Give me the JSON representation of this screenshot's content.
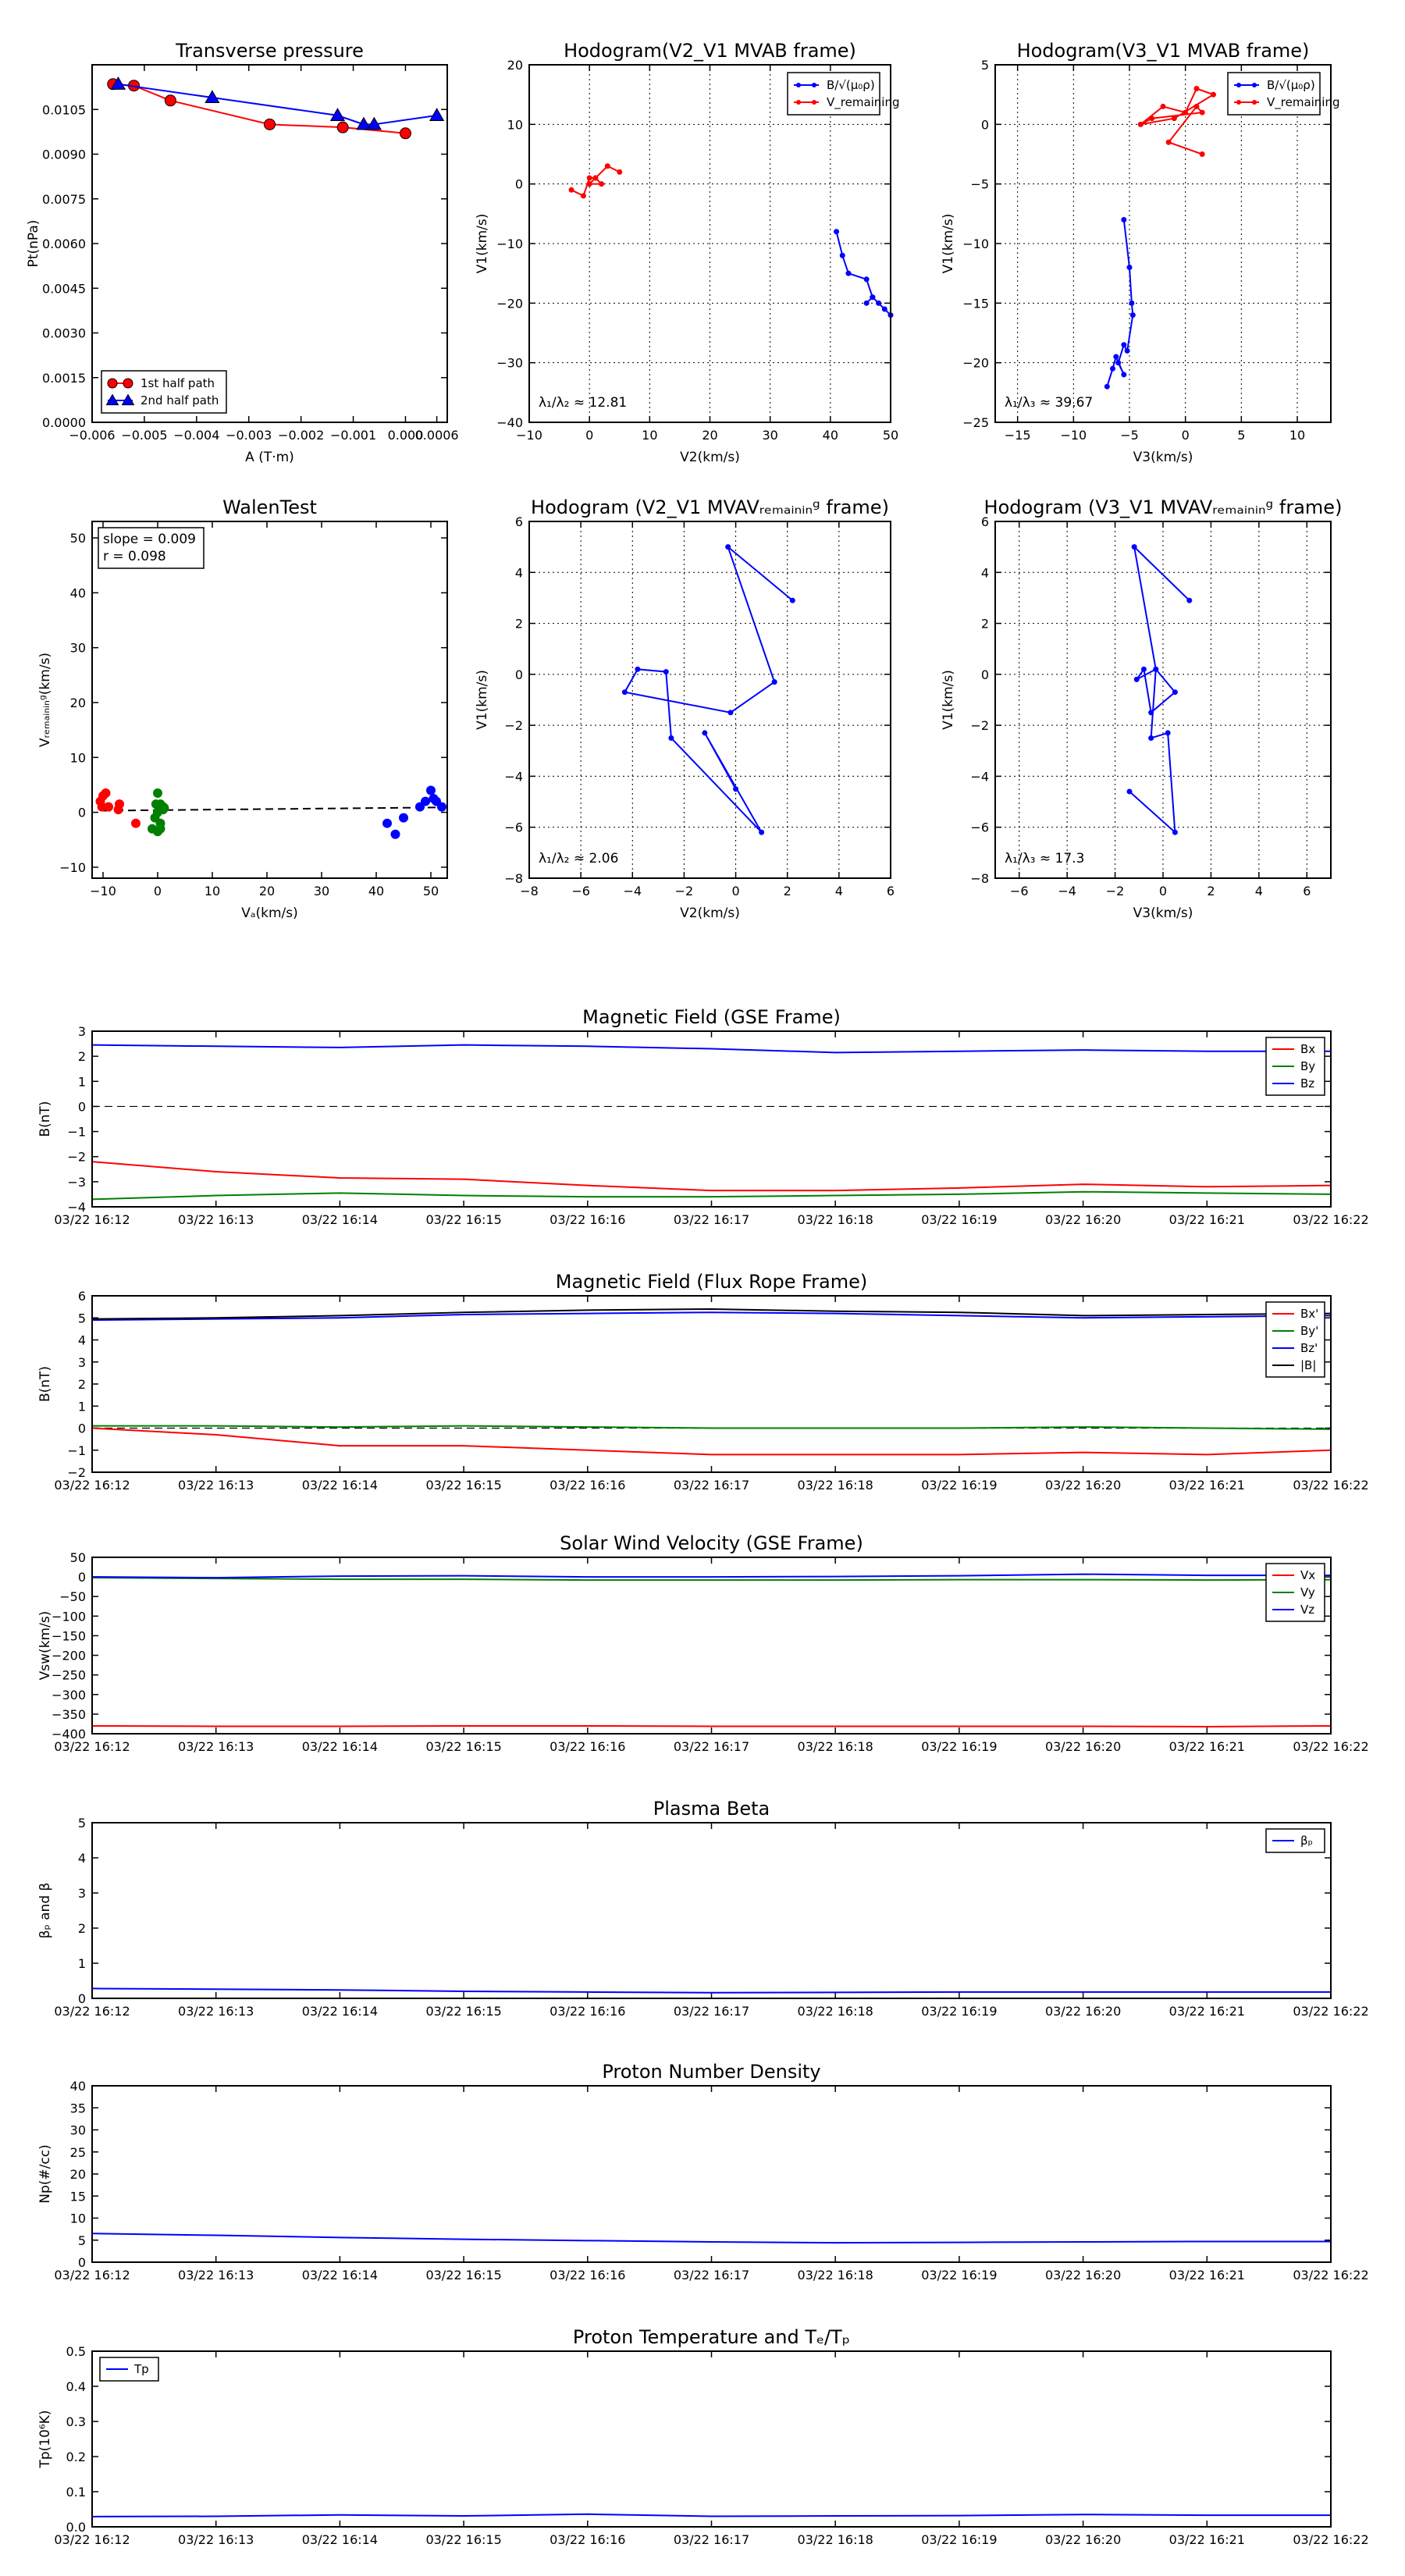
{
  "chart_data": [
    {
      "id": "tp",
      "type": "scatter",
      "title": "Transverse pressure",
      "xlabel": "A (T·m)",
      "ylabel": "Pt(nPa)",
      "xlim": [
        -0.006,
        0.0008
      ],
      "ylim": [
        0,
        0.012
      ],
      "xticks": [
        -0.006,
        -0.005,
        -0.004,
        -0.003,
        -0.002,
        -0.001,
        0.0
      ],
      "xtick_labels": [
        "−0.006",
        "−0.005",
        "−0.004",
        "−0.003",
        "−0.002",
        "−0.001",
        "0.000"
      ],
      "extra_xticks": [
        {
          "v": 0.0006,
          "label": "0.0006"
        }
      ],
      "yticks": [
        0,
        0.0015,
        0.003,
        0.0045,
        0.006,
        0.0075,
        0.009,
        0.0105
      ],
      "ytick_labels": [
        "0.0000",
        "0.0015",
        "0.0030",
        "0.0045",
        "0.0060",
        "0.0075",
        "0.0090",
        "0.0105"
      ],
      "grid": false,
      "legend": "lower-left",
      "series": [
        {
          "name": "1st half path",
          "color": "#ff0000",
          "marker": "circle",
          "x": [
            -0.0056,
            -0.0052,
            -0.0045,
            -0.0026,
            -0.0012,
            0.0
          ],
          "y": [
            0.01135,
            0.0113,
            0.0108,
            0.01,
            0.0099,
            0.0097
          ]
        },
        {
          "name": "2nd half path",
          "color": "#0000ff",
          "marker": "triangle",
          "x": [
            -0.0055,
            -0.0037,
            -0.0013,
            -0.0008,
            -0.0006,
            0.0006
          ],
          "y": [
            0.01135,
            0.0109,
            0.0103,
            0.01,
            0.01,
            0.0103
          ]
        }
      ]
    },
    {
      "id": "hodo1",
      "type": "line",
      "title": "Hodogram(V2_V1 MVAB frame)",
      "xlabel": "V2(km/s)",
      "ylabel": "V1(km/s)",
      "xlim": [
        -10,
        50
      ],
      "ylim": [
        -40,
        20
      ],
      "xticks": [
        -10,
        0,
        10,
        20,
        30,
        40,
        50
      ],
      "yticks": [
        -40,
        -30,
        -20,
        -10,
        0,
        10,
        20
      ],
      "grid": true,
      "legend": "top-right",
      "annotation": "λ₁/λ₂ ≈ 12.81",
      "series": [
        {
          "name": "B/√(μ₀ρ)",
          "color": "#0000ff",
          "x": [
            41,
            42,
            43,
            46,
            47,
            48,
            49,
            50,
            47,
            46
          ],
          "y": [
            -8,
            -12,
            -15,
            -16,
            -19,
            -20,
            -21,
            -22,
            -19,
            -20
          ]
        },
        {
          "name": "V_remaining",
          "color": "#ff0000",
          "x": [
            -3,
            -1,
            0,
            1,
            2,
            0,
            1,
            3,
            5
          ],
          "y": [
            -1,
            -2,
            1,
            1,
            0,
            0,
            1,
            3,
            2
          ]
        }
      ]
    },
    {
      "id": "hodo2",
      "type": "line",
      "title": "Hodogram(V3_V1 MVAB frame)",
      "xlabel": "V3(km/s)",
      "ylabel": "V1(km/s)",
      "xlim": [
        -17,
        13
      ],
      "ylim": [
        -25,
        5
      ],
      "xticks": [
        -15,
        -10,
        -5,
        0,
        5,
        10
      ],
      "yticks": [
        -25,
        -20,
        -15,
        -10,
        -5,
        0,
        5
      ],
      "grid": true,
      "legend": "top-right",
      "annotation": "λ₁/λ₃ ≈ 39.67",
      "series": [
        {
          "name": "B/√(μ₀ρ)",
          "color": "#0000ff",
          "x": [
            -5.5,
            -5,
            -4.8,
            -4.7,
            -5.2,
            -5.5,
            -6,
            -5.5,
            -6.2,
            -6.5,
            -7
          ],
          "y": [
            -8,
            -12,
            -15,
            -16,
            -19,
            -18.5,
            -20,
            -21,
            -19.5,
            -20.5,
            -22
          ]
        },
        {
          "name": "V_remaining",
          "color": "#ff0000",
          "x": [
            -4,
            -2,
            0,
            1,
            2.5,
            -1,
            -4,
            -3,
            1.5,
            1,
            -1.5,
            1.5
          ],
          "y": [
            0,
            1.5,
            1,
            3,
            2.5,
            0.5,
            0,
            0.5,
            1,
            1.5,
            -1.5,
            -2.5
          ]
        }
      ]
    },
    {
      "id": "walen",
      "type": "scatter",
      "title": "WalenTest",
      "xlabel": "Vₐ(km/s)",
      "ylabel": "Vᵣₑₘₐᵢₙᵢₙᵍ(km/s)",
      "xlim": [
        -12,
        53
      ],
      "ylim": [
        -12,
        53
      ],
      "xticks": [
        -10,
        0,
        10,
        20,
        30,
        40,
        50
      ],
      "yticks": [
        -10,
        0,
        10,
        20,
        30,
        40,
        50
      ],
      "grid": false,
      "annotation_lines": [
        "slope = 0.009",
        "r = 0.098"
      ],
      "fit_line": {
        "x": [
          -10,
          52
        ],
        "y": [
          0.3,
          0.9
        ]
      },
      "series": [
        {
          "name": "red",
          "color": "#ff0000",
          "x": [
            -10.5,
            -10,
            -9.5,
            -10.2,
            -9,
            -7,
            -7.2,
            -4
          ],
          "y": [
            2,
            3,
            3.5,
            1,
            1,
            1.5,
            0.5,
            -2
          ]
        },
        {
          "name": "green",
          "color": "#008000",
          "x": [
            0,
            0.5,
            1,
            0,
            -0.5,
            0.5,
            1,
            -1,
            0,
            0.5,
            -0.3,
            1.2
          ],
          "y": [
            3.5,
            1.5,
            1,
            0,
            -1,
            -2,
            0.5,
            -3,
            -3.5,
            -3,
            1.5,
            0.8
          ]
        },
        {
          "name": "blue",
          "color": "#0000ff",
          "x": [
            42,
            43.5,
            45,
            48,
            49,
            50,
            51,
            52,
            50.5
          ],
          "y": [
            -2,
            -4,
            -1,
            1,
            2,
            4,
            2,
            1,
            2.5
          ]
        }
      ]
    },
    {
      "id": "hodo3",
      "type": "line",
      "title": "Hodogram (V2_V1 MVAVᵣₑₘₐᵢₙᵢₙᵍ frame)",
      "xlabel": "V2(km/s)",
      "ylabel": "V1(km/s)",
      "xlim": [
        -8,
        6
      ],
      "ylim": [
        -8,
        6
      ],
      "xticks": [
        -8,
        -6,
        -4,
        -2,
        0,
        2,
        4,
        6
      ],
      "yticks": [
        -8,
        -6,
        -4,
        -2,
        0,
        2,
        4,
        6
      ],
      "grid": true,
      "annotation": "λ₁/λ₂ ≈ 2.06",
      "series": [
        {
          "name": "V",
          "color": "#0000ff",
          "x": [
            2.2,
            -0.3,
            1.5,
            -0.2,
            -4.3,
            -3.8,
            -2.7,
            -2.5,
            1,
            -1.2,
            0
          ],
          "y": [
            2.9,
            5,
            -0.3,
            -1.5,
            -0.7,
            0.2,
            0.1,
            -2.5,
            -6.2,
            -2.3,
            -4.5
          ]
        }
      ]
    },
    {
      "id": "hodo4",
      "type": "line",
      "title": "Hodogram (V3_V1 MVAVᵣₑₘₐᵢₙᵢₙᵍ frame)",
      "xlabel": "V3(km/s)",
      "ylabel": "V1(km/s)",
      "xlim": [
        -7,
        7
      ],
      "ylim": [
        -8,
        6
      ],
      "xticks": [
        -6,
        -4,
        -2,
        0,
        2,
        4,
        6
      ],
      "yticks": [
        -8,
        -6,
        -4,
        -2,
        0,
        2,
        4,
        6
      ],
      "grid": true,
      "annotation": "λ₁/λ₃ ≈ 17.3",
      "series": [
        {
          "name": "V",
          "color": "#0000ff",
          "x": [
            1.1,
            -1.2,
            -0.3,
            0.5,
            -0.5,
            -0.8,
            -1.1,
            -0.3,
            -0.5,
            0.2,
            0.5,
            -1.4
          ],
          "y": [
            2.9,
            5,
            0.2,
            -0.7,
            -1.5,
            0.2,
            -0.2,
            0.2,
            -2.5,
            -2.3,
            -6.2,
            -4.6
          ]
        }
      ]
    },
    {
      "id": "bgse",
      "type": "line",
      "title": "Magnetic Field (GSE Frame)",
      "ylabel": "B(nT)",
      "ylim": [
        -4,
        3
      ],
      "yticks": [
        -4,
        -3,
        -2,
        -1,
        0,
        1,
        2,
        3
      ],
      "zero_dash": true,
      "legend": "top-right",
      "series": [
        {
          "name": "Bx",
          "color": "#ff0000",
          "y": [
            -2.2,
            -2.6,
            -2.85,
            -2.9,
            -3.15,
            -3.35,
            -3.35,
            -3.25,
            -3.1,
            -3.2,
            -3.15
          ]
        },
        {
          "name": "By",
          "color": "#008000",
          "y": [
            -3.7,
            -3.55,
            -3.45,
            -3.55,
            -3.6,
            -3.6,
            -3.55,
            -3.5,
            -3.4,
            -3.45,
            -3.5
          ]
        },
        {
          "name": "Bz",
          "color": "#0000ff",
          "y": [
            2.45,
            2.4,
            2.35,
            2.45,
            2.4,
            2.3,
            2.15,
            2.2,
            2.25,
            2.2,
            2.2
          ]
        }
      ]
    },
    {
      "id": "bfr",
      "type": "line",
      "title": "Magnetic Field (Flux Rope Frame)",
      "ylabel": "B(nT)",
      "ylim": [
        -2,
        6
      ],
      "yticks": [
        -2,
        -1,
        0,
        1,
        2,
        3,
        4,
        5,
        6
      ],
      "zero_dash": true,
      "legend": "top-right",
      "series": [
        {
          "name": "Bx'",
          "color": "#ff0000",
          "y": [
            0,
            -0.3,
            -0.8,
            -0.8,
            -1.0,
            -1.2,
            -1.2,
            -1.2,
            -1.1,
            -1.2,
            -1.0
          ]
        },
        {
          "name": "By'",
          "color": "#008000",
          "y": [
            0.1,
            0.1,
            0.05,
            0.1,
            0.05,
            0.0,
            0.0,
            0.0,
            0.05,
            0.0,
            -0.05
          ]
        },
        {
          "name": "Bz'",
          "color": "#0000ff",
          "y": [
            4.9,
            4.95,
            5.0,
            5.15,
            5.2,
            5.25,
            5.2,
            5.1,
            5.0,
            5.05,
            5.1
          ]
        },
        {
          "name": "|B|",
          "color": "#000000",
          "y": [
            4.95,
            5.0,
            5.1,
            5.25,
            5.35,
            5.4,
            5.3,
            5.25,
            5.1,
            5.15,
            5.2
          ]
        }
      ]
    },
    {
      "id": "vsw",
      "type": "line",
      "title": "Solar Wind Velocity (GSE Frame)",
      "ylabel": "Vsw(km/s)",
      "ylim": [
        -400,
        50
      ],
      "yticks": [
        -400,
        -350,
        -300,
        -250,
        -200,
        -150,
        -100,
        -50,
        0,
        50
      ],
      "legend": "top-right",
      "series": [
        {
          "name": "Vx",
          "color": "#ff0000",
          "y": [
            -380,
            -381,
            -381,
            -380,
            -380,
            -381,
            -381,
            -381,
            -381,
            -382,
            -380
          ]
        },
        {
          "name": "Vy",
          "color": "#008000",
          "y": [
            -2,
            -4,
            -6,
            -6,
            -8,
            -8,
            -8,
            -7,
            -7,
            -8,
            -7
          ]
        },
        {
          "name": "Vz",
          "color": "#0000ff",
          "y": [
            0,
            -2,
            2,
            3,
            0,
            0,
            1,
            3,
            7,
            4,
            4
          ]
        }
      ]
    },
    {
      "id": "beta",
      "type": "line",
      "title": "Plasma Beta",
      "ylabel": "βₚ and β",
      "ylim": [
        0,
        5
      ],
      "yticks": [
        0,
        1,
        2,
        3,
        4,
        5
      ],
      "legend": "top-right",
      "series": [
        {
          "name": "βₚ",
          "color": "#0000ff",
          "y": [
            0.28,
            0.26,
            0.24,
            0.2,
            0.18,
            0.16,
            0.17,
            0.18,
            0.18,
            0.18,
            0.18
          ]
        }
      ]
    },
    {
      "id": "np",
      "type": "line",
      "title": "Proton Number Density",
      "ylabel": "Np(#/cc)",
      "ylim": [
        0,
        40
      ],
      "yticks": [
        0,
        5,
        10,
        15,
        20,
        25,
        30,
        35,
        40
      ],
      "series": [
        {
          "name": "Np",
          "color": "#0000ff",
          "y": [
            6.5,
            6.1,
            5.6,
            5.2,
            4.9,
            4.6,
            4.4,
            4.5,
            4.6,
            4.7,
            4.7
          ]
        }
      ]
    },
    {
      "id": "tpr",
      "type": "line",
      "title": "Proton Temperature and Tₑ/Tₚ",
      "ylabel": "Tp(10⁶K)",
      "ylim": [
        0,
        0.5
      ],
      "yticks": [
        0,
        0.1,
        0.2,
        0.3,
        0.4,
        0.5
      ],
      "ytick_labels": [
        "0.0",
        "0.1",
        "0.2",
        "0.3",
        "0.4",
        "0.5"
      ],
      "legend": "top-left",
      "series": [
        {
          "name": "Tp",
          "color": "#0000ff",
          "y": [
            0.029,
            0.03,
            0.034,
            0.031,
            0.036,
            0.03,
            0.031,
            0.032,
            0.035,
            0.033,
            0.033
          ]
        }
      ]
    }
  ],
  "time_axis": [
    "03/22 16:12",
    "03/22 16:13",
    "03/22 16:14",
    "03/22 16:15",
    "03/22 16:16",
    "03/22 16:17",
    "03/22 16:18",
    "03/22 16:19",
    "03/22 16:20",
    "03/22 16:21",
    "03/22 16:22"
  ]
}
